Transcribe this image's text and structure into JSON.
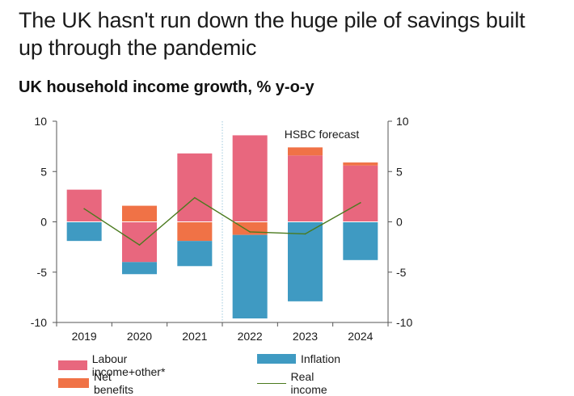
{
  "headline": "The UK hasn't run down the huge pile of savings built up through the pandemic",
  "colors": {
    "labour": "#e8677e",
    "net_benefits": "#f07246",
    "inflation": "#3f9ac2",
    "real_income": "#4a7a1e",
    "divider": "#9dc8dc"
  },
  "chart_data": {
    "type": "bar",
    "title": "UK household income growth, % y-o-y",
    "categories": [
      "2019",
      "2020",
      "2021",
      "2022",
      "2023",
      "2024"
    ],
    "ylim": [
      -10,
      10
    ],
    "yticks": [
      10,
      5,
      0,
      -5,
      -10
    ],
    "ytick_labels": [
      "10",
      "5",
      "0",
      "-5",
      "-10"
    ],
    "annotation": "HSBC forecast",
    "forecast_start_index": 3,
    "series": [
      {
        "name": "Labour income+other*",
        "kind": "bar",
        "color_key": "labour",
        "values": [
          3.2,
          -4.0,
          6.8,
          8.6,
          6.6,
          5.6
        ]
      },
      {
        "name": "Net benefits",
        "kind": "bar",
        "color_key": "net_benefits",
        "values": [
          0.0,
          1.6,
          -1.9,
          -1.3,
          0.8,
          0.3
        ]
      },
      {
        "name": "Inflation",
        "kind": "bar",
        "color_key": "inflation",
        "values": [
          -1.9,
          -1.2,
          -2.5,
          -8.3,
          -7.9,
          -3.8
        ]
      },
      {
        "name": "Real income",
        "kind": "line",
        "color_key": "real_income",
        "values": [
          1.3,
          -2.3,
          2.4,
          -1.0,
          -1.2,
          1.9
        ]
      }
    ]
  },
  "legend": [
    {
      "label": "Labour income+other*",
      "kind": "swatch",
      "color_key": "labour"
    },
    {
      "label": "Inflation",
      "kind": "swatch",
      "color_key": "inflation"
    },
    {
      "label": "Net benefits",
      "kind": "swatch",
      "color_key": "net_benefits"
    },
    {
      "label": "Real income",
      "kind": "line",
      "color_key": "real_income"
    }
  ]
}
